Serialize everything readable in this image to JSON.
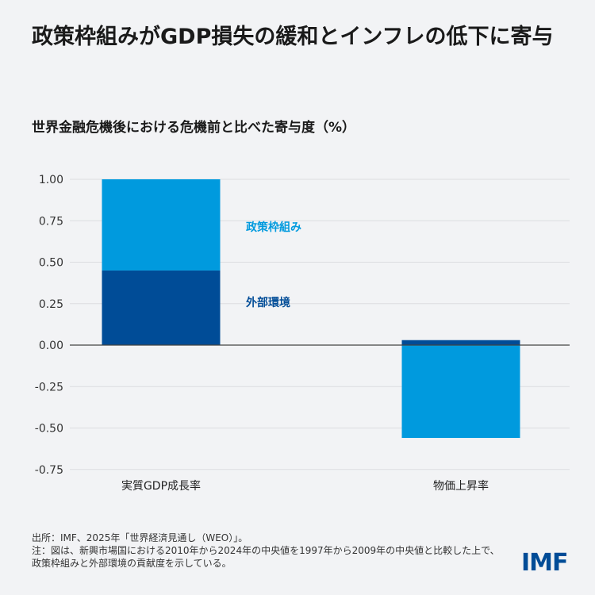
{
  "title": "政策枠組みがGDP損失の緩和とインフレの低下に寄与",
  "subtitle": "世界金融危機後における危機前と比べた寄与度（%）",
  "chart_data": {
    "type": "bar",
    "stacked": true,
    "categories": [
      "実質GDP成長率",
      "物価上昇率"
    ],
    "series": [
      {
        "name": "外部環境",
        "values": [
          0.45,
          0.03
        ],
        "color": "#004c97"
      },
      {
        "name": "政策枠組み",
        "values": [
          0.55,
          -0.56
        ],
        "color": "#009ade"
      }
    ],
    "ylim": [
      -0.75,
      1.0
    ],
    "yticks": [
      "1.00",
      "0.75",
      "0.50",
      "0.25",
      "0.00",
      "-0.25",
      "-0.50",
      "-0.75"
    ],
    "grid": true,
    "legend": "inline-labels"
  },
  "footer": {
    "source": "出所：IMF、2025年「世界経済見通し（WEO）」。",
    "note": "注：図は、新興市場国における2010年から2024年の中央値を1997年から2009年の中央値と比較した上で、政策枠組みと外部環境の貢献度を示している。"
  },
  "logo": "IMF"
}
